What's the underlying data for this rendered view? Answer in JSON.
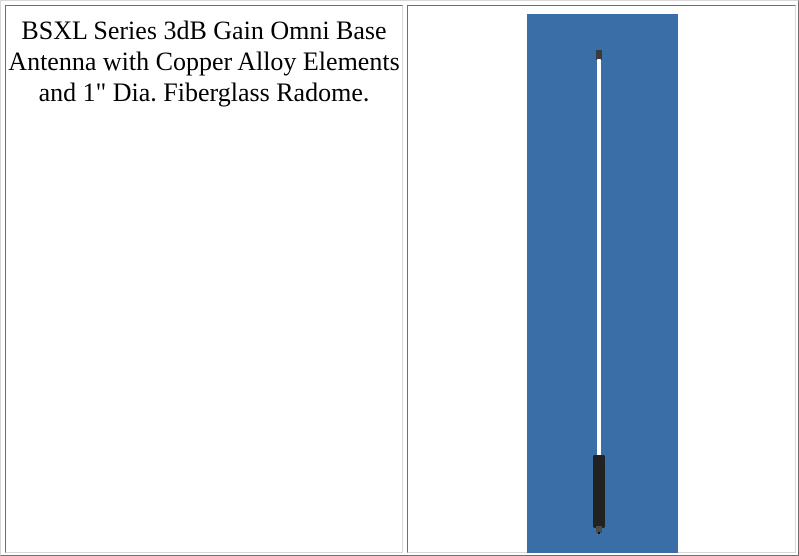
{
  "product": {
    "description": "BSXL Series 3dB Gain Omni Base Antenna with Copper Alloy Elements and 1\" Dia. Fiberglass Radome.",
    "image": {
      "subject": "antenna",
      "background_color": "#3a6ea6",
      "radome_color": "#ffffff",
      "base_color": "#222222"
    }
  }
}
